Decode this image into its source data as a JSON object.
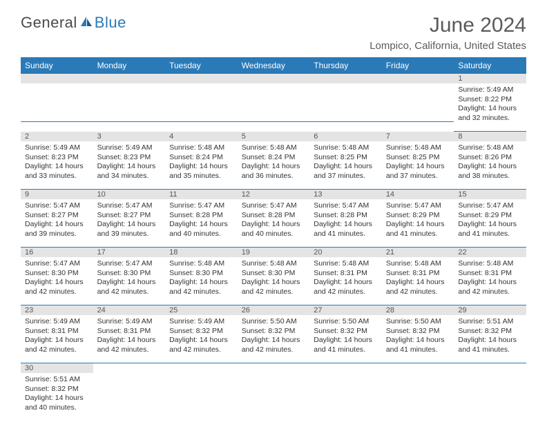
{
  "brand": {
    "general": "General",
    "blue": "Blue"
  },
  "title": "June 2024",
  "location": "Lompico, California, United States",
  "colors": {
    "header_bg": "#2a7ab8",
    "header_text": "#ffffff",
    "daynum_bg": "#e4e4e4",
    "divider": "#2a7ab8",
    "text": "#333333",
    "muted": "#5a5a5a"
  },
  "weekdays": [
    "Sunday",
    "Monday",
    "Tuesday",
    "Wednesday",
    "Thursday",
    "Friday",
    "Saturday"
  ],
  "weeks": [
    [
      null,
      null,
      null,
      null,
      null,
      null,
      {
        "n": "1",
        "sr": "Sunrise: 5:49 AM",
        "ss": "Sunset: 8:22 PM",
        "d1": "Daylight: 14 hours",
        "d2": "and 32 minutes."
      }
    ],
    [
      {
        "n": "2",
        "sr": "Sunrise: 5:49 AM",
        "ss": "Sunset: 8:23 PM",
        "d1": "Daylight: 14 hours",
        "d2": "and 33 minutes."
      },
      {
        "n": "3",
        "sr": "Sunrise: 5:49 AM",
        "ss": "Sunset: 8:23 PM",
        "d1": "Daylight: 14 hours",
        "d2": "and 34 minutes."
      },
      {
        "n": "4",
        "sr": "Sunrise: 5:48 AM",
        "ss": "Sunset: 8:24 PM",
        "d1": "Daylight: 14 hours",
        "d2": "and 35 minutes."
      },
      {
        "n": "5",
        "sr": "Sunrise: 5:48 AM",
        "ss": "Sunset: 8:24 PM",
        "d1": "Daylight: 14 hours",
        "d2": "and 36 minutes."
      },
      {
        "n": "6",
        "sr": "Sunrise: 5:48 AM",
        "ss": "Sunset: 8:25 PM",
        "d1": "Daylight: 14 hours",
        "d2": "and 37 minutes."
      },
      {
        "n": "7",
        "sr": "Sunrise: 5:48 AM",
        "ss": "Sunset: 8:25 PM",
        "d1": "Daylight: 14 hours",
        "d2": "and 37 minutes."
      },
      {
        "n": "8",
        "sr": "Sunrise: 5:48 AM",
        "ss": "Sunset: 8:26 PM",
        "d1": "Daylight: 14 hours",
        "d2": "and 38 minutes."
      }
    ],
    [
      {
        "n": "9",
        "sr": "Sunrise: 5:47 AM",
        "ss": "Sunset: 8:27 PM",
        "d1": "Daylight: 14 hours",
        "d2": "and 39 minutes."
      },
      {
        "n": "10",
        "sr": "Sunrise: 5:47 AM",
        "ss": "Sunset: 8:27 PM",
        "d1": "Daylight: 14 hours",
        "d2": "and 39 minutes."
      },
      {
        "n": "11",
        "sr": "Sunrise: 5:47 AM",
        "ss": "Sunset: 8:28 PM",
        "d1": "Daylight: 14 hours",
        "d2": "and 40 minutes."
      },
      {
        "n": "12",
        "sr": "Sunrise: 5:47 AM",
        "ss": "Sunset: 8:28 PM",
        "d1": "Daylight: 14 hours",
        "d2": "and 40 minutes."
      },
      {
        "n": "13",
        "sr": "Sunrise: 5:47 AM",
        "ss": "Sunset: 8:28 PM",
        "d1": "Daylight: 14 hours",
        "d2": "and 41 minutes."
      },
      {
        "n": "14",
        "sr": "Sunrise: 5:47 AM",
        "ss": "Sunset: 8:29 PM",
        "d1": "Daylight: 14 hours",
        "d2": "and 41 minutes."
      },
      {
        "n": "15",
        "sr": "Sunrise: 5:47 AM",
        "ss": "Sunset: 8:29 PM",
        "d1": "Daylight: 14 hours",
        "d2": "and 41 minutes."
      }
    ],
    [
      {
        "n": "16",
        "sr": "Sunrise: 5:47 AM",
        "ss": "Sunset: 8:30 PM",
        "d1": "Daylight: 14 hours",
        "d2": "and 42 minutes."
      },
      {
        "n": "17",
        "sr": "Sunrise: 5:47 AM",
        "ss": "Sunset: 8:30 PM",
        "d1": "Daylight: 14 hours",
        "d2": "and 42 minutes."
      },
      {
        "n": "18",
        "sr": "Sunrise: 5:48 AM",
        "ss": "Sunset: 8:30 PM",
        "d1": "Daylight: 14 hours",
        "d2": "and 42 minutes."
      },
      {
        "n": "19",
        "sr": "Sunrise: 5:48 AM",
        "ss": "Sunset: 8:30 PM",
        "d1": "Daylight: 14 hours",
        "d2": "and 42 minutes."
      },
      {
        "n": "20",
        "sr": "Sunrise: 5:48 AM",
        "ss": "Sunset: 8:31 PM",
        "d1": "Daylight: 14 hours",
        "d2": "and 42 minutes."
      },
      {
        "n": "21",
        "sr": "Sunrise: 5:48 AM",
        "ss": "Sunset: 8:31 PM",
        "d1": "Daylight: 14 hours",
        "d2": "and 42 minutes."
      },
      {
        "n": "22",
        "sr": "Sunrise: 5:48 AM",
        "ss": "Sunset: 8:31 PM",
        "d1": "Daylight: 14 hours",
        "d2": "and 42 minutes."
      }
    ],
    [
      {
        "n": "23",
        "sr": "Sunrise: 5:49 AM",
        "ss": "Sunset: 8:31 PM",
        "d1": "Daylight: 14 hours",
        "d2": "and 42 minutes."
      },
      {
        "n": "24",
        "sr": "Sunrise: 5:49 AM",
        "ss": "Sunset: 8:31 PM",
        "d1": "Daylight: 14 hours",
        "d2": "and 42 minutes."
      },
      {
        "n": "25",
        "sr": "Sunrise: 5:49 AM",
        "ss": "Sunset: 8:32 PM",
        "d1": "Daylight: 14 hours",
        "d2": "and 42 minutes."
      },
      {
        "n": "26",
        "sr": "Sunrise: 5:50 AM",
        "ss": "Sunset: 8:32 PM",
        "d1": "Daylight: 14 hours",
        "d2": "and 42 minutes."
      },
      {
        "n": "27",
        "sr": "Sunrise: 5:50 AM",
        "ss": "Sunset: 8:32 PM",
        "d1": "Daylight: 14 hours",
        "d2": "and 41 minutes."
      },
      {
        "n": "28",
        "sr": "Sunrise: 5:50 AM",
        "ss": "Sunset: 8:32 PM",
        "d1": "Daylight: 14 hours",
        "d2": "and 41 minutes."
      },
      {
        "n": "29",
        "sr": "Sunrise: 5:51 AM",
        "ss": "Sunset: 8:32 PM",
        "d1": "Daylight: 14 hours",
        "d2": "and 41 minutes."
      }
    ],
    [
      {
        "n": "30",
        "sr": "Sunrise: 5:51 AM",
        "ss": "Sunset: 8:32 PM",
        "d1": "Daylight: 14 hours",
        "d2": "and 40 minutes."
      },
      null,
      null,
      null,
      null,
      null,
      null
    ]
  ]
}
